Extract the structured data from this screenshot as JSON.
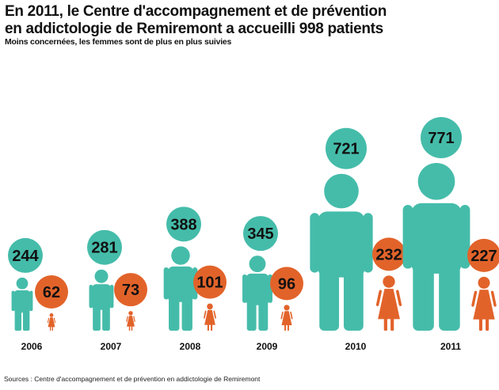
{
  "title_lines": [
    "En 2011, le Centre d'accompagnement et de prévention",
    "en addictologie de Remiremont a accueilli 998 patients"
  ],
  "subtitle": "Moins concernées, les femmes sont de plus en plus suivies",
  "sources": "Sources : Centre d'accompagnement et de prévention en addictologie de Remiremont",
  "colors": {
    "men": "#45bcaa",
    "women": "#e2632a",
    "text": "#111111"
  },
  "chart_data": {
    "type": "bar",
    "categories": [
      "2006",
      "2007",
      "2008",
      "2009",
      "2010",
      "2011"
    ],
    "series": [
      {
        "values": [
          244,
          281,
          388,
          345,
          721,
          771
        ]
      },
      {
        "values": [
          62,
          73,
          101,
          96,
          232,
          227
        ]
      }
    ],
    "marks": [
      "man-pictogram",
      "woman-pictogram"
    ],
    "grid": false,
    "legend": "none"
  }
}
